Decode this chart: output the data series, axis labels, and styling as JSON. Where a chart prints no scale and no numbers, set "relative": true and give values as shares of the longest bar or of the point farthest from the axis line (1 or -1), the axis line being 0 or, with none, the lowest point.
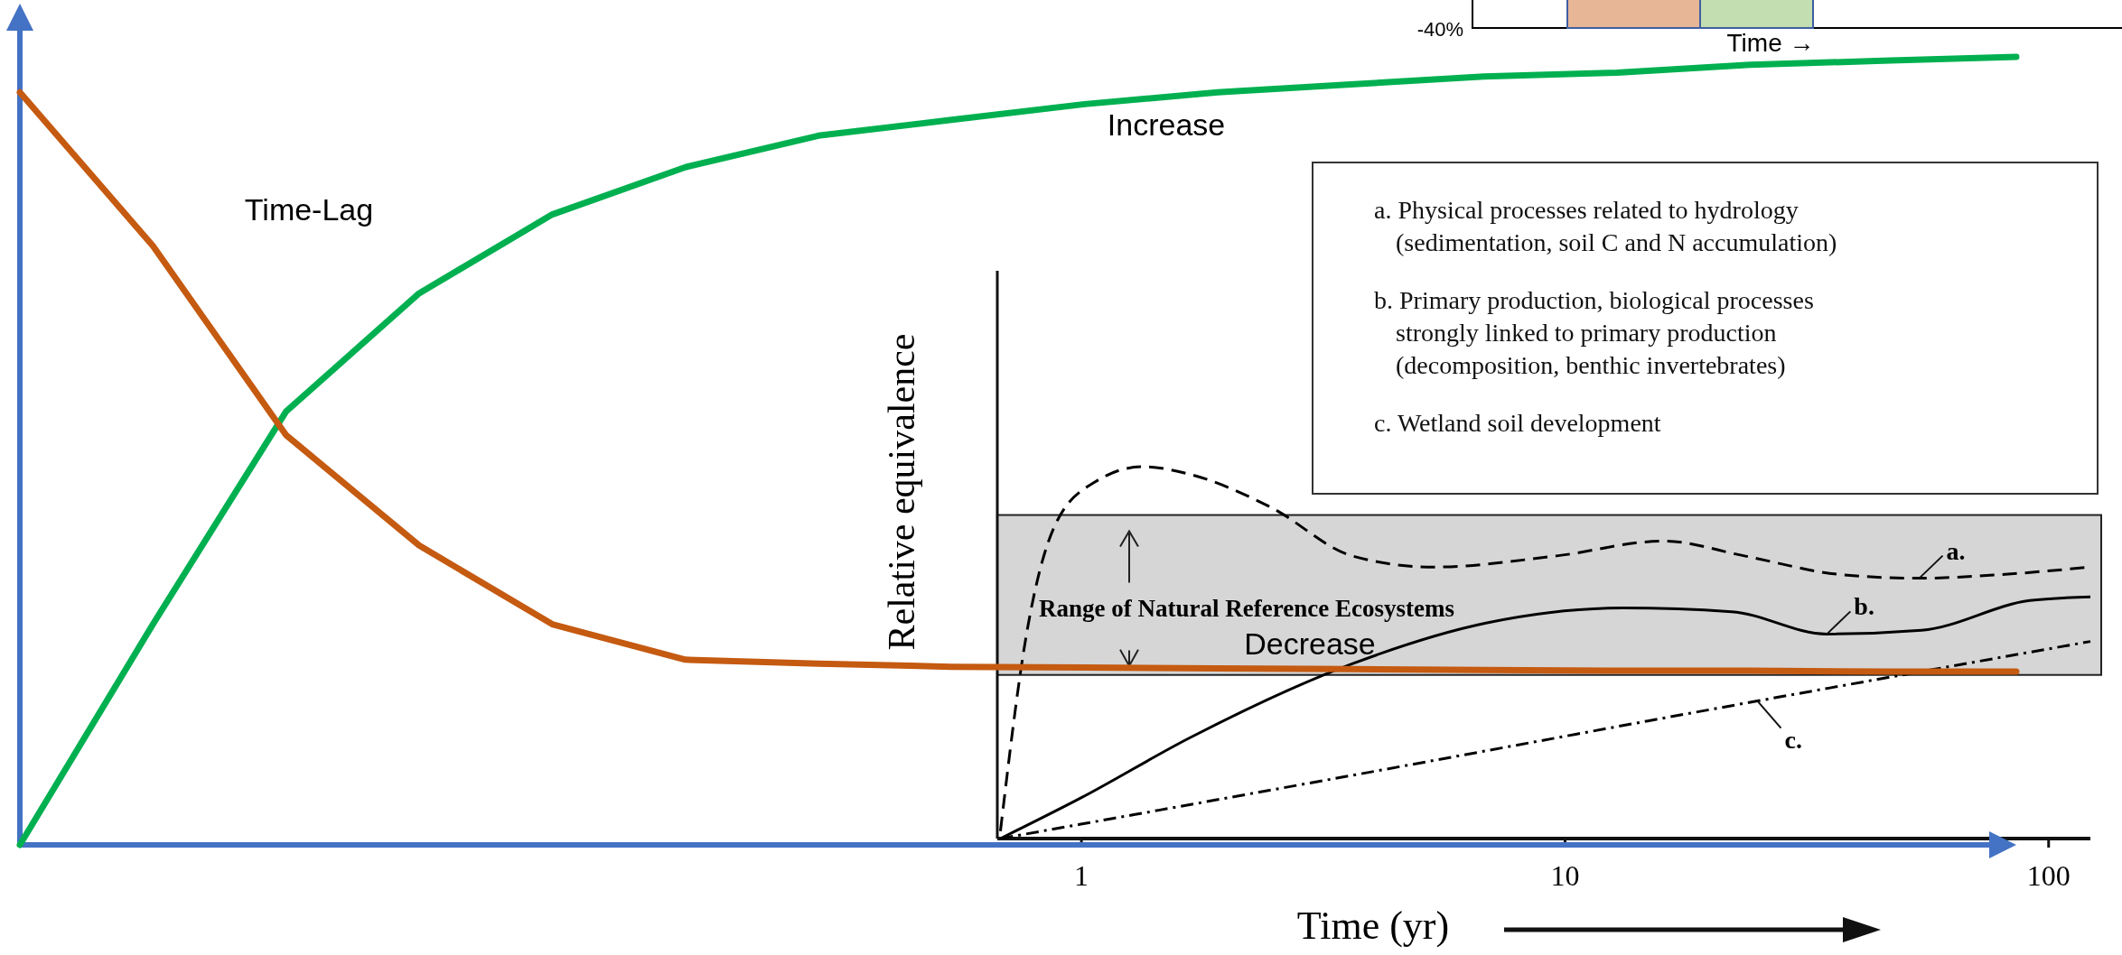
{
  "chart_data": [
    {
      "type": "line",
      "relative": true,
      "categories": [
        null,
        null,
        null,
        null,
        null,
        null,
        null,
        null,
        null,
        null,
        null,
        null,
        null,
        null,
        null,
        null
      ],
      "series": [
        {
          "color": "#00b050",
          "values": [
            0,
            0.28,
            0.55,
            0.7,
            0.8,
            0.86,
            0.9,
            0.92,
            0.94,
            0.955,
            0.965,
            0.975,
            0.98,
            0.99,
            0.995,
            1
          ]
        },
        {
          "color": "#c55a11",
          "values": [
            0.955,
            0.76,
            0.52,
            0.38,
            0.28,
            0.235,
            0.23,
            0.226,
            0.225,
            0.224,
            0.223,
            0.222,
            0.221,
            0.221,
            0.22,
            0.22
          ]
        }
      ],
      "annotations": [
        "Time-Lag",
        "Increase",
        "Decrease"
      ]
    },
    {
      "type": "line",
      "relative": true,
      "log": "x",
      "tick_labels": "x",
      "xlabel": "Time (yr)",
      "ylabel": "Relative equivalence",
      "xlim": [
        0.67,
        122
      ],
      "xticks": [
        1,
        10,
        100
      ],
      "bands": [
        {
          "axis": "y",
          "from": 0.44,
          "to": 0.87,
          "label": "Range of Natural Reference Ecosystems",
          "color": "#d6d6d6"
        }
      ],
      "series": [
        {
          "name": "a.",
          "color": "#000000",
          "line_style": "dashed",
          "x": [
            0.68,
            0.77,
            0.88,
            1.07,
            1.34,
            1.67,
            2.47,
            3.63,
            5.34,
            9.6,
            16,
            23.5,
            37,
            54,
            80,
            122
          ],
          "values": [
            0.02,
            0.55,
            0.84,
            0.96,
            1,
            0.98,
            0.89,
            0.76,
            0.73,
            0.76,
            0.8,
            0.76,
            0.71,
            0.7,
            0.71,
            0.73
          ]
        },
        {
          "name": "b.",
          "color": "#000000",
          "line_style": "solid",
          "x": [
            0.68,
            1,
            1.67,
            3.63,
            6.9,
            13.2,
            22.1,
            34.8,
            54.6,
            91.4,
            122
          ],
          "values": [
            0,
            0.11,
            0.27,
            0.47,
            0.58,
            0.62,
            0.61,
            0.55,
            0.56,
            0.64,
            0.65
          ]
        },
        {
          "name": "c.",
          "color": "#000000",
          "line_style": "dotted",
          "x": [
            0.68,
            3.63,
            25,
            122
          ],
          "values": [
            0,
            0.17,
            0.37,
            0.53
          ]
        }
      ],
      "annotations": [
        "a. Physical processes related to hydrology\n(sedimentation, soil C and N accumulation)",
        "b. Primary production, biological processes\nstrongly linked to primary production\n(decomposition, benthic invertebrates)",
        "c. Wetland soil development"
      ]
    },
    {
      "type": "other",
      "xlabel": "Time →",
      "annotations": [
        "-40%"
      ]
    }
  ]
}
